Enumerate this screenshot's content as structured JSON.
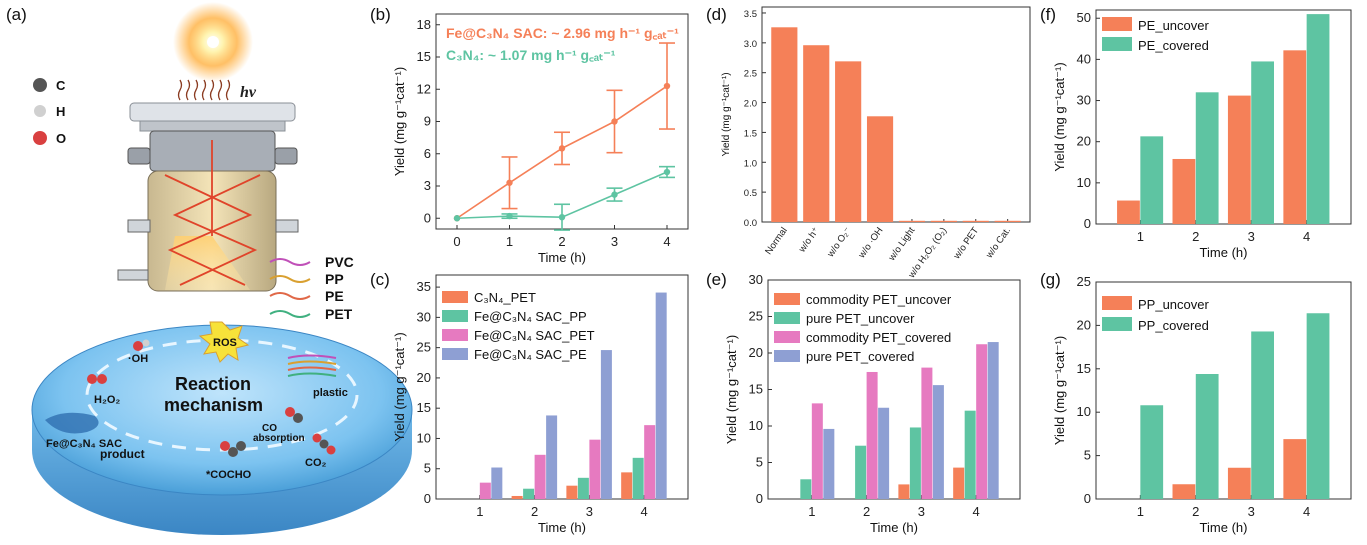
{
  "panel_labels": {
    "a": "(a)",
    "b": "(b)",
    "c": "(c)",
    "d": "(d)",
    "e": "(e)",
    "f": "(f)",
    "g": "(g)"
  },
  "colors": {
    "orange": "#f58058",
    "teal": "#5ec4a2",
    "pink": "#e67ac0",
    "blue": "#8e9fd3",
    "bg_frame": "#444444"
  },
  "schematic": {
    "atoms": [
      {
        "symbol": "C",
        "color": "#555555"
      },
      {
        "symbol": "H",
        "color": "#d0d0d0"
      },
      {
        "symbol": "O",
        "color": "#d94040"
      }
    ],
    "light_label": "hv",
    "plastics": [
      {
        "name": "PVC",
        "color": "#c050b8"
      },
      {
        "name": "PP",
        "color": "#d9a030"
      },
      {
        "name": "PE",
        "color": "#e06848"
      },
      {
        "name": "PET",
        "color": "#40b080"
      }
    ],
    "mechanism_title_1": "Reaction",
    "mechanism_title_2": "mechanism",
    "ros": "ROS",
    "oh": "·OH",
    "h2o2": "H₂O₂",
    "catalyst": "Fe@C₃N₄ SAC",
    "plastic": "plastic",
    "co_absorption_1": "CO",
    "co_absorption_2": "absorption",
    "co2": "CO₂",
    "cocho": "*COCHO",
    "product": "product"
  },
  "chart_data": [
    {
      "id": "b",
      "type": "line",
      "xlabel": "Time (h)",
      "ylabel": "Yield (mg g⁻¹cat⁻¹)",
      "x": [
        0,
        1,
        2,
        3,
        4
      ],
      "xticks": [
        "0",
        "1",
        "2",
        "3",
        "4"
      ],
      "ylim": [
        -1,
        19
      ],
      "yticks": [
        "0",
        "3",
        "6",
        "9",
        "12",
        "15",
        "18"
      ],
      "series": [
        {
          "name": "Fe@C₃N₄ SAC",
          "color": "#f58058",
          "values": [
            0,
            3.3,
            6.5,
            9.0,
            12.3
          ],
          "err": [
            0,
            2.4,
            1.5,
            2.9,
            4.0
          ]
        },
        {
          "name": "C₃N₄",
          "color": "#5ec4a2",
          "values": [
            0,
            0.2,
            0.1,
            2.2,
            4.3
          ],
          "err": [
            0,
            0.2,
            1.2,
            0.6,
            0.5
          ]
        }
      ],
      "annotations": [
        "Fe@C₃N₄ SAC: ~ 2.96 mg h⁻¹ g꜀ₐₜ⁻¹",
        "C₃N₄: ~ 1.07 mg h⁻¹ g꜀ₐₜ⁻¹"
      ]
    },
    {
      "id": "c",
      "type": "bar",
      "xlabel": "Time (h)",
      "ylabel": "Yield (mg g⁻¹cat⁻¹)",
      "categories": [
        "1",
        "2",
        "3",
        "4"
      ],
      "ylim": [
        0,
        37
      ],
      "yticks": [
        "0",
        "5",
        "10",
        "15",
        "20",
        "25",
        "30",
        "35"
      ],
      "series": [
        {
          "name": "C₃N₄_PET",
          "color": "#f58058",
          "values": [
            0,
            0.5,
            2.2,
            4.4
          ]
        },
        {
          "name": "Fe@C₃N₄ SAC_PP",
          "color": "#5ec4a2",
          "values": [
            0,
            1.7,
            3.5,
            6.8
          ]
        },
        {
          "name": "Fe@C₃N₄ SAC_PET",
          "color": "#e67ac0",
          "values": [
            2.7,
            7.3,
            9.8,
            12.2
          ]
        },
        {
          "name": "Fe@C₃N₄ SAC_PE",
          "color": "#8e9fd3",
          "values": [
            5.2,
            13.8,
            24.6,
            34.1
          ]
        }
      ]
    },
    {
      "id": "d",
      "type": "bar",
      "ylabel": "Yield (mg g⁻¹cat⁻¹)",
      "categories": [
        "Normal",
        "w/o h⁺",
        "w/o O₂⁻",
        "w/o ·OH",
        "w/o Light",
        "w/o H₂O₂ (O₂)",
        "w/o PET",
        "w/o Cat."
      ],
      "ylim": [
        0,
        3.6
      ],
      "yticks": [
        "0.0",
        "0.5",
        "1.0",
        "1.5",
        "2.0",
        "2.5",
        "3.0",
        "3.5"
      ],
      "series": [
        {
          "name": "Yield",
          "color": "#f58058",
          "values": [
            3.26,
            2.96,
            2.69,
            1.77,
            0.02,
            0.02,
            0.02,
            0.02
          ]
        }
      ]
    },
    {
      "id": "e",
      "type": "bar",
      "xlabel": "Time (h)",
      "ylabel": "Yield (mg g⁻¹cat⁻¹)",
      "categories": [
        "1",
        "2",
        "3",
        "4"
      ],
      "ylim": [
        0,
        30
      ],
      "yticks": [
        "0",
        "5",
        "10",
        "15",
        "20",
        "25",
        "30"
      ],
      "series": [
        {
          "name": "commodity PET_uncover",
          "color": "#f58058",
          "values": [
            0,
            0,
            2.0,
            4.3
          ]
        },
        {
          "name": "pure PET_uncover",
          "color": "#5ec4a2",
          "values": [
            2.7,
            7.3,
            9.8,
            12.1
          ]
        },
        {
          "name": "commodity PET_covered",
          "color": "#e67ac0",
          "values": [
            13.1,
            17.4,
            18.0,
            21.2
          ]
        },
        {
          "name": "pure PET_covered",
          "color": "#8e9fd3",
          "values": [
            9.6,
            12.5,
            15.6,
            21.5
          ]
        }
      ]
    },
    {
      "id": "f",
      "type": "bar",
      "xlabel": "Time (h)",
      "ylabel": "Yield (mg g⁻¹cat⁻¹)",
      "categories": [
        "1",
        "2",
        "3",
        "4"
      ],
      "ylim": [
        0,
        52
      ],
      "yticks": [
        "0",
        "10",
        "20",
        "30",
        "40",
        "50"
      ],
      "series": [
        {
          "name": "PE_uncover",
          "color": "#f58058",
          "values": [
            5.7,
            15.8,
            31.2,
            42.2
          ]
        },
        {
          "name": "PE_covered",
          "color": "#5ec4a2",
          "values": [
            21.3,
            32.0,
            39.5,
            51.0
          ]
        }
      ]
    },
    {
      "id": "g",
      "type": "bar",
      "xlabel": "Time (h)",
      "ylabel": "Yield (mg g⁻¹cat⁻¹)",
      "categories": [
        "1",
        "2",
        "3",
        "4"
      ],
      "ylim": [
        0,
        25
      ],
      "yticks": [
        "0",
        "5",
        "10",
        "15",
        "20",
        "25"
      ],
      "series": [
        {
          "name": "PP_uncover",
          "color": "#f58058",
          "values": [
            0,
            1.7,
            3.6,
            6.9
          ]
        },
        {
          "name": "PP_covered",
          "color": "#5ec4a2",
          "values": [
            10.8,
            14.4,
            19.3,
            21.4
          ]
        }
      ]
    }
  ]
}
